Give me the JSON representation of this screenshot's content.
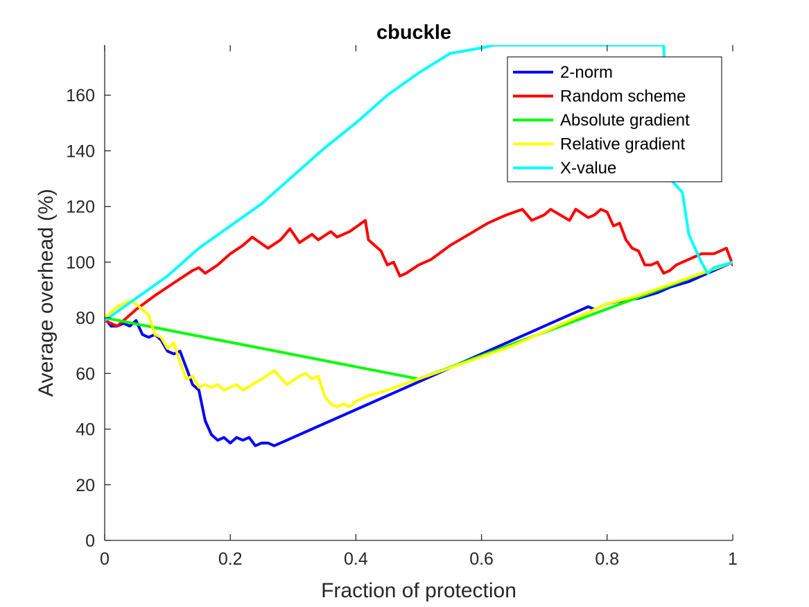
{
  "chart_data": {
    "type": "line",
    "title": "cbuckle",
    "xlabel": "Fraction of protection",
    "ylabel": "Average overhead (%)",
    "xlim": [
      0,
      1
    ],
    "ylim": [
      0,
      178
    ],
    "xticks": [
      0,
      0.2,
      0.4,
      0.6,
      0.8,
      1
    ],
    "xtick_labels": [
      "0",
      "0.2",
      "0.4",
      "0.6",
      "0.8",
      "1"
    ],
    "yticks": [
      0,
      20,
      40,
      60,
      80,
      100,
      120,
      140,
      160
    ],
    "ytick_labels": [
      "0",
      "20",
      "40",
      "60",
      "80",
      "100",
      "120",
      "140",
      "160"
    ],
    "grid": false,
    "legend_position": "top-right",
    "series": [
      {
        "name": "2-norm",
        "color": "#0000ff",
        "x": [
          0,
          0.01,
          0.02,
          0.03,
          0.04,
          0.05,
          0.06,
          0.07,
          0.08,
          0.09,
          0.1,
          0.11,
          0.12,
          0.13,
          0.14,
          0.15,
          0.16,
          0.17,
          0.18,
          0.19,
          0.2,
          0.21,
          0.22,
          0.23,
          0.24,
          0.25,
          0.26,
          0.27,
          0.28,
          0.3,
          0.35,
          0.4,
          0.45,
          0.5,
          0.55,
          0.6,
          0.65,
          0.7,
          0.75,
          0.77,
          0.78,
          0.8,
          0.82,
          0.85,
          0.88,
          0.9,
          0.93,
          0.96,
          0.98,
          1.0
        ],
        "y": [
          80,
          77,
          77,
          78,
          77,
          79,
          74,
          73,
          74,
          72,
          68,
          67,
          68,
          62,
          56,
          54,
          43,
          38,
          36,
          37,
          35,
          37,
          36,
          37,
          34,
          35,
          35,
          34,
          35,
          37,
          42,
          47,
          52,
          57,
          62,
          67,
          72,
          77,
          82,
          84,
          83,
          85,
          86,
          87,
          89,
          91,
          93,
          96,
          98,
          100
        ]
      },
      {
        "name": "Random scheme",
        "color": "#ff0000",
        "x": [
          0,
          0.02,
          0.05,
          0.08,
          0.12,
          0.14,
          0.15,
          0.16,
          0.18,
          0.2,
          0.22,
          0.235,
          0.26,
          0.28,
          0.295,
          0.31,
          0.33,
          0.34,
          0.36,
          0.37,
          0.39,
          0.415,
          0.42,
          0.44,
          0.45,
          0.46,
          0.47,
          0.48,
          0.5,
          0.52,
          0.55,
          0.58,
          0.61,
          0.64,
          0.665,
          0.68,
          0.7,
          0.71,
          0.74,
          0.75,
          0.77,
          0.78,
          0.79,
          0.8,
          0.81,
          0.82,
          0.83,
          0.84,
          0.85,
          0.86,
          0.87,
          0.88,
          0.89,
          0.9,
          0.91,
          0.92,
          0.93,
          0.95,
          0.96,
          0.97,
          0.99,
          1.0
        ],
        "y": [
          79,
          77,
          83,
          88,
          94,
          97,
          98,
          96,
          99,
          103,
          106,
          109,
          105,
          108,
          112,
          107,
          110,
          108,
          111,
          109,
          111,
          115,
          108,
          104,
          99,
          100,
          95,
          96,
          99,
          101,
          106,
          110,
          114,
          117,
          119,
          115,
          117,
          119,
          115,
          119,
          116,
          117,
          119,
          118,
          113,
          114,
          108,
          105,
          104,
          99,
          99,
          100,
          96,
          97,
          99,
          100,
          101,
          103,
          103,
          103,
          105,
          99
        ]
      },
      {
        "name": "Absolute gradient",
        "color": "#00ff00",
        "x": [
          0,
          0.5,
          1.0
        ],
        "y": [
          80,
          58,
          100
        ]
      },
      {
        "name": "Relative gradient",
        "color": "#ffff00",
        "x": [
          0,
          0.02,
          0.04,
          0.05,
          0.06,
          0.07,
          0.08,
          0.09,
          0.1,
          0.11,
          0.12,
          0.13,
          0.14,
          0.15,
          0.16,
          0.17,
          0.18,
          0.19,
          0.2,
          0.21,
          0.22,
          0.235,
          0.25,
          0.27,
          0.29,
          0.31,
          0.32,
          0.33,
          0.34,
          0.35,
          0.36,
          0.37,
          0.38,
          0.39,
          0.4,
          0.42,
          0.45,
          0.5,
          0.55,
          0.6,
          0.65,
          0.7,
          0.75,
          0.8,
          0.85,
          0.9,
          0.95,
          1.0
        ],
        "y": [
          80,
          84,
          86,
          85,
          83,
          81,
          74,
          73,
          69,
          71,
          64,
          58,
          59,
          55,
          56,
          55,
          56,
          54,
          55,
          56,
          54,
          56,
          58,
          61,
          56,
          59,
          60,
          58,
          59,
          52,
          49,
          48,
          49,
          48,
          50,
          52,
          54,
          58,
          62,
          66,
          70,
          75,
          80,
          85,
          88,
          92,
          96,
          100
        ]
      },
      {
        "name": "X-value",
        "color": "#00ffff",
        "x": [
          0,
          0.05,
          0.1,
          0.15,
          0.2,
          0.25,
          0.3,
          0.35,
          0.4,
          0.45,
          0.5,
          0.55,
          0.6,
          0.62,
          0.63,
          0.64,
          0.66,
          0.7,
          0.75,
          0.8,
          0.85,
          0.89,
          0.9,
          0.92,
          0.93,
          0.94,
          0.95,
          0.96,
          0.97,
          1.0
        ],
        "y": [
          79,
          87,
          95,
          105,
          113,
          121,
          131,
          141,
          150,
          160,
          168,
          175,
          177,
          178,
          178,
          178,
          178,
          178,
          178,
          178,
          178,
          178,
          130,
          125,
          110,
          105,
          100,
          96,
          98,
          100
        ]
      }
    ]
  }
}
